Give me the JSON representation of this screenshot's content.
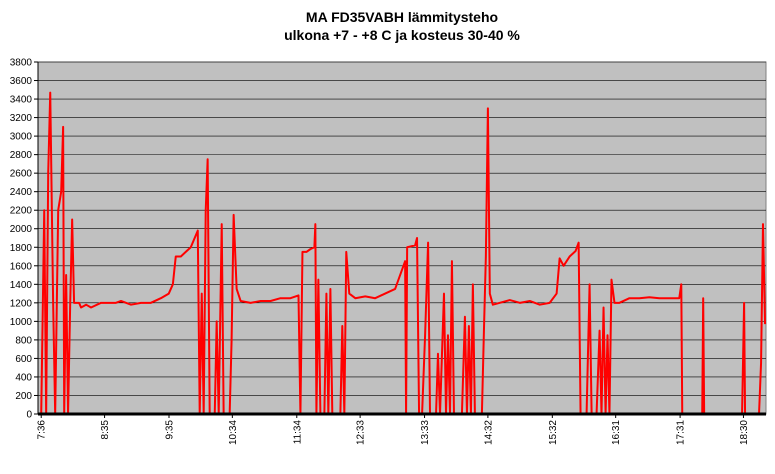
{
  "chart_data": {
    "type": "line",
    "title": "MA FD35VABH lämmitysteho",
    "subtitle": "ulkona +7 - +8 C ja kosteus 30-40 %",
    "x": [
      456,
      458.8,
      460.6,
      462.5,
      464.4,
      467.1,
      469,
      471.8,
      474.6,
      476.4,
      477.4,
      479.2,
      481,
      483,
      484.8,
      486.6,
      491.3,
      493.1,
      497.8,
      502.4,
      511.7,
      525.6,
      530.3,
      539.6,
      548.9,
      558.1,
      567.4,
      574.8,
      578.6,
      581.3,
      586,
      590.6,
      595.3,
      601.8,
      603.6,
      605.5,
      607.3,
      609.2,
      611,
      612.9,
      617.6,
      619.4,
      621.3,
      624.1,
      625.9,
      631.5,
      633.3,
      635.2,
      638,
      641.7,
      651,
      660.3,
      669.6,
      678.8,
      688.1,
      695.6,
      697.4,
      699.3,
      703,
      706.7,
      710.4,
      711.3,
      712.3,
      714.1,
      716,
      719.7,
      721.6,
      723.4,
      725.3,
      727.1,
      734.6,
      736.4,
      738.3,
      740.1,
      742.9,
      748.5,
      757.8,
      767,
      776.3,
      785.6,
      794.9,
      795.8,
      796.8,
      804.2,
      806,
      807.9,
      810.7,
      813.5,
      816.3,
      818.1,
      823.7,
      825.5,
      827.4,
      831.1,
      833,
      834.8,
      836.7,
      838.5,
      840.4,
      847.8,
      850.6,
      852.5,
      854.3,
      856.2,
      858,
      859.9,
      866.4,
      868.3,
      870.1,
      872,
      873.8,
      876.6,
      883.1,
      892.4,
      901.7,
      911,
      920.3,
      929.5,
      936,
      938.8,
      942.5,
      948.1,
      953.7,
      956.5,
      958.3,
      963.9,
      966.7,
      968.6,
      973.2,
      976,
      977.8,
      979.7,
      981.6,
      983.4,
      985.2,
      987.1,
      989.9,
      994.5,
      1003.8,
      1013.1,
      1022.4,
      1031.7,
      1041,
      1050.2,
      1052.1,
      1053,
      1071.6,
      1072.5,
      1073.4,
      1108.7,
      1110.6,
      1111.5,
      1124.5,
      1126.4,
      1128.2,
      1130.1
    ],
    "series": [
      {
        "color": "#ff0000",
        "values": [
          0,
          2200,
          0,
          2600,
          3470,
          1200,
          0,
          2200,
          2400,
          3100,
          0,
          1500,
          0,
          1200,
          2100,
          1200,
          1200,
          1150,
          1180,
          1150,
          1200,
          1200,
          1220,
          1180,
          1200,
          1200,
          1250,
          1300,
          1400,
          1700,
          1700,
          1750,
          1800,
          1980,
          0,
          1300,
          0,
          2200,
          2750,
          0,
          0,
          1000,
          0,
          2050,
          0,
          0,
          800,
          2150,
          1350,
          1220,
          1200,
          1220,
          1220,
          1250,
          1250,
          1280,
          0,
          1750,
          1750,
          1780,
          1800,
          2050,
          0,
          1450,
          0,
          0,
          1300,
          0,
          1350,
          0,
          0,
          950,
          0,
          1750,
          1300,
          1250,
          1270,
          1250,
          1300,
          1350,
          1650,
          0,
          1800,
          1820,
          1900,
          0,
          0,
          850,
          1850,
          0,
          0,
          650,
          0,
          1300,
          0,
          850,
          0,
          1650,
          0,
          0,
          1050,
          0,
          950,
          0,
          1400,
          0,
          0,
          900,
          1700,
          3300,
          1300,
          1180,
          1200,
          1230,
          1200,
          1220,
          1180,
          1200,
          1300,
          1680,
          1600,
          1700,
          1760,
          1850,
          0,
          0,
          1400,
          0,
          0,
          900,
          0,
          1150,
          0,
          850,
          0,
          1450,
          1200,
          1200,
          1250,
          1250,
          1260,
          1250,
          1250,
          1250,
          1400,
          0,
          0,
          1250,
          0,
          0,
          1200,
          0,
          0,
          550,
          2050,
          970
        ]
      }
    ],
    "xlim": [
      453,
      1131
    ],
    "xticks": [
      {
        "value": 456,
        "label": "7:36"
      },
      {
        "value": 515,
        "label": "8:35"
      },
      {
        "value": 575,
        "label": "9:35"
      },
      {
        "value": 634,
        "label": "10:34"
      },
      {
        "value": 694,
        "label": "11:34"
      },
      {
        "value": 753,
        "label": "12:33"
      },
      {
        "value": 813,
        "label": "13:33"
      },
      {
        "value": 872,
        "label": "14:32"
      },
      {
        "value": 932,
        "label": "15:32"
      },
      {
        "value": 991,
        "label": "16:31"
      },
      {
        "value": 1051,
        "label": "17:31"
      },
      {
        "value": 1110,
        "label": "18:30"
      }
    ],
    "ylim": [
      0,
      3800
    ],
    "yticks": [
      0,
      200,
      400,
      600,
      800,
      1000,
      1200,
      1400,
      1600,
      1800,
      2000,
      2200,
      2400,
      2600,
      2800,
      3000,
      3200,
      3400,
      3600,
      3800
    ],
    "grid": true
  }
}
